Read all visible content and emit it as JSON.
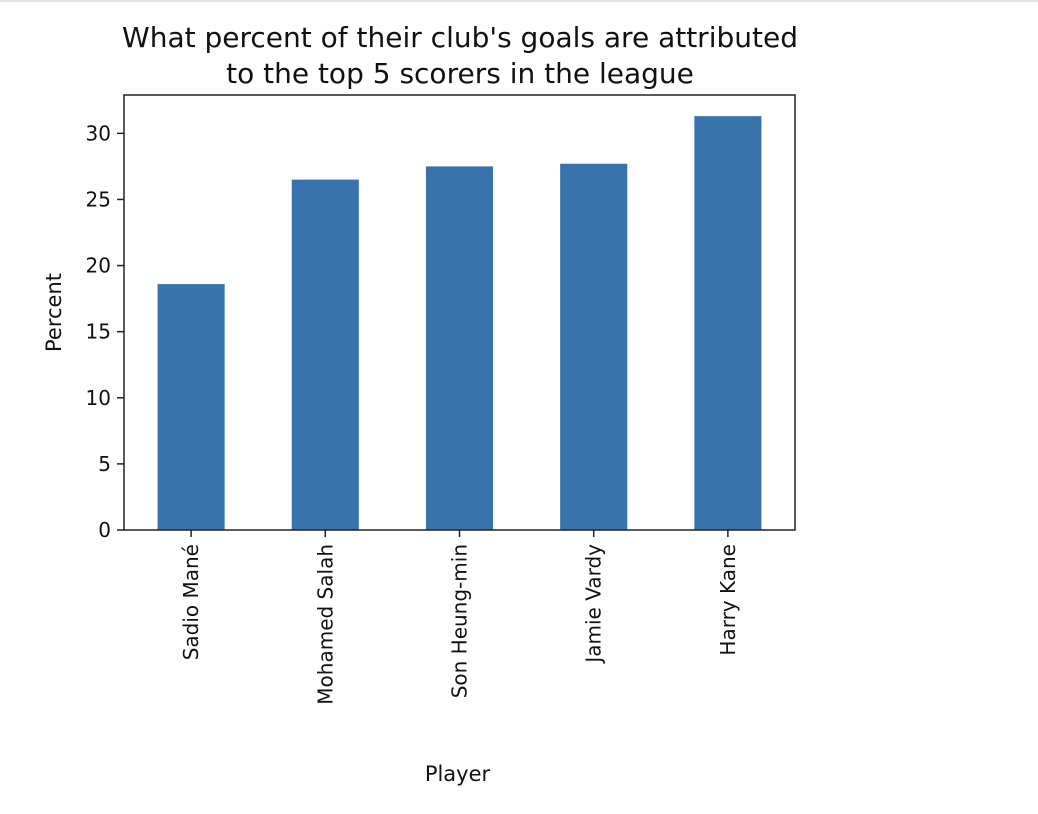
{
  "chart_data": {
    "type": "bar",
    "title": "What percent of their club's goals are attributed\nto the top 5 scorers in the league",
    "xlabel": "Player",
    "ylabel": "Percent",
    "categories": [
      "Sadio Mané",
      "Mohamed Salah",
      "Son Heung-min",
      "Jamie Vardy",
      "Harry Kane"
    ],
    "values": [
      18.6,
      26.5,
      27.5,
      27.7,
      31.3
    ],
    "ylim": [
      0,
      32.9
    ],
    "yticks": [
      0,
      5,
      10,
      15,
      20,
      25,
      30
    ],
    "grid": false,
    "bar_color": "#3874ab"
  }
}
